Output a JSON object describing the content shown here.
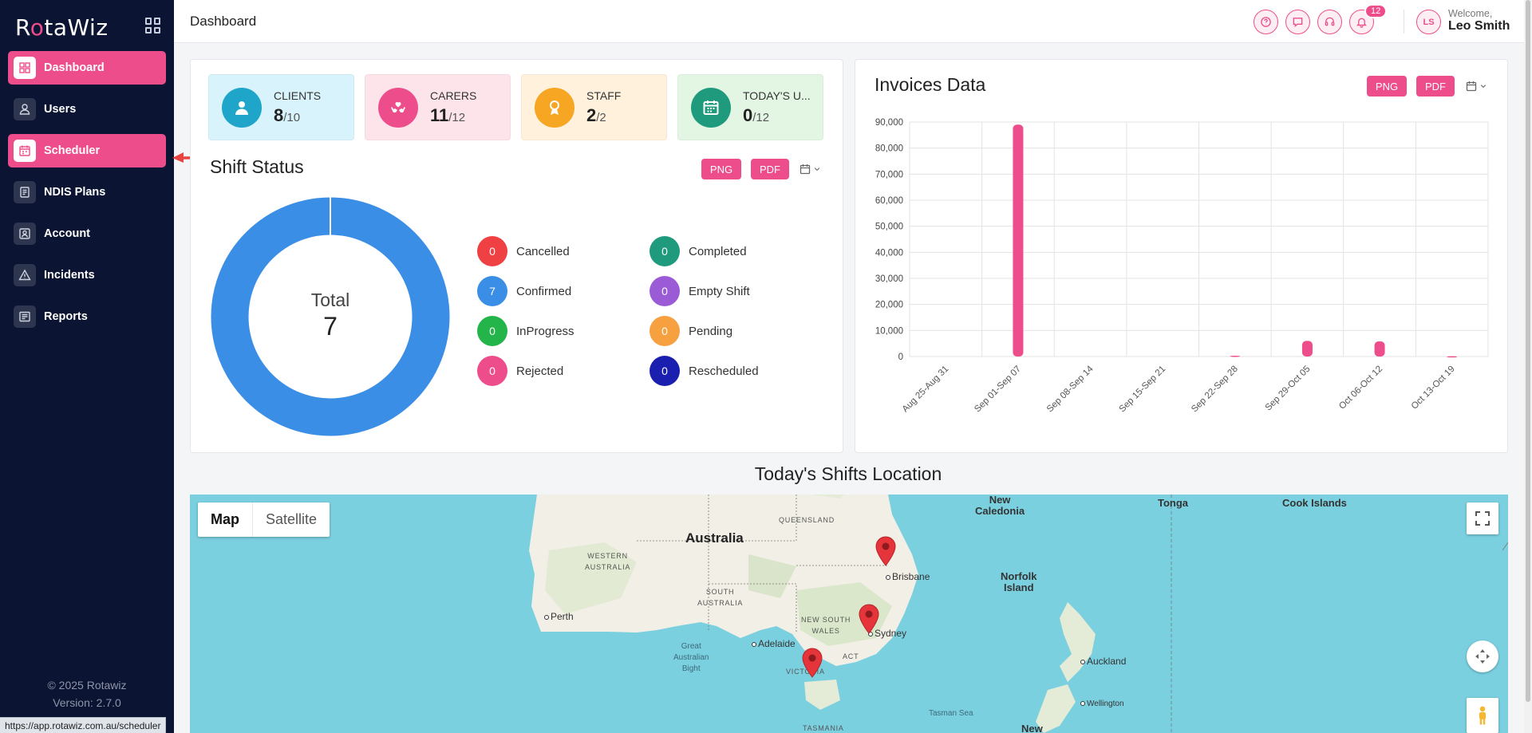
{
  "app": {
    "logo_pre": "R",
    "logo_o": "o",
    "logo_post": "taWiz"
  },
  "sidebar": {
    "items": [
      {
        "label": "Dashboard",
        "icon": "dashboard-icon",
        "active": true
      },
      {
        "label": "Users",
        "icon": "user-icon",
        "active": false
      },
      {
        "label": "Scheduler",
        "icon": "calendar-icon",
        "active": true
      },
      {
        "label": "NDIS Plans",
        "icon": "document-icon",
        "active": false
      },
      {
        "label": "Account",
        "icon": "account-icon",
        "active": false
      },
      {
        "label": "Incidents",
        "icon": "warning-icon",
        "active": false
      },
      {
        "label": "Reports",
        "icon": "report-icon",
        "active": false
      }
    ],
    "copyright": "© 2025 Rotawiz",
    "version": "Version: 2.7.0"
  },
  "status_url": "https://app.rotawiz.com.au/scheduler",
  "header": {
    "title": "Dashboard",
    "notification_count": "12",
    "avatar_initials": "LS",
    "welcome": "Welcome,",
    "username": "Leo Smith"
  },
  "stats": [
    {
      "label": "CLIENTS",
      "value": "8",
      "total": "/10",
      "bg": "#d8f3fb",
      "circle": "#1ea5c9"
    },
    {
      "label": "CARERS",
      "value": "11",
      "total": "/12",
      "bg": "#fde4ea",
      "circle": "#ee4d8b"
    },
    {
      "label": "STAFF",
      "value": "2",
      "total": "/2",
      "bg": "#fff1dc",
      "circle": "#f6a623"
    },
    {
      "label": "TODAY'S U...",
      "value": "0",
      "total": "/12",
      "bg": "#e3f6e4",
      "circle": "#1f9a7c"
    }
  ],
  "shift_status": {
    "title": "Shift Status",
    "png": "PNG",
    "pdf": "PDF",
    "total_label": "Total",
    "total_value": "7",
    "legend": [
      {
        "label": "Cancelled",
        "value": "0",
        "color": "#ef4044"
      },
      {
        "label": "Completed",
        "value": "0",
        "color": "#1f9a7c"
      },
      {
        "label": "Confirmed",
        "value": "7",
        "color": "#3a8ee6"
      },
      {
        "label": "Empty Shift",
        "value": "0",
        "color": "#9c5bd6"
      },
      {
        "label": "InProgress",
        "value": "0",
        "color": "#23b54a"
      },
      {
        "label": "Pending",
        "value": "0",
        "color": "#f6a040"
      },
      {
        "label": "Rejected",
        "value": "0",
        "color": "#ee4d8b"
      },
      {
        "label": "Rescheduled",
        "value": "0",
        "color": "#1a1fb0"
      }
    ]
  },
  "invoices": {
    "title": "Invoices Data",
    "png": "PNG",
    "pdf": "PDF"
  },
  "chart_data": {
    "type": "bar",
    "title": "Invoices Data",
    "categories": [
      "Aug 25-Aug 31",
      "Sep 01-Sep 07",
      "Sep 08-Sep 14",
      "Sep 15-Sep 21",
      "Sep 22-Sep 28",
      "Sep 29-Oct 05",
      "Oct 06-Oct 12",
      "Oct 13-Oct 19"
    ],
    "values": [
      0,
      89000,
      0,
      0,
      300,
      6000,
      5800,
      100
    ],
    "ylim": [
      0,
      90000
    ],
    "yticks": [
      "0",
      "10,000",
      "20,000",
      "30,000",
      "40,000",
      "50,000",
      "60,000",
      "70,000",
      "80,000",
      "90,000"
    ],
    "ytick_values": [
      0,
      10000,
      20000,
      30000,
      40000,
      50000,
      60000,
      70000,
      80000,
      90000
    ],
    "bar_color": "#ee4d8b",
    "grid": true
  },
  "map": {
    "title": "Today's Shifts Location",
    "map_btn": "Map",
    "satellite_btn": "Satellite",
    "labels": {
      "australia": "Australia",
      "new_caledonia": "New\nCaledonia",
      "tonga": "Tonga",
      "cook_islands": "Cook Islands",
      "queensland": "QUEENSLAND",
      "western_australia": "WESTERN\nAUSTRALIA",
      "south_australia": "SOUTH\nAUSTRALIA",
      "new_south_wales": "NEW SOUTH\nWALES",
      "victoria": "VICTORIA",
      "act": "ACT",
      "tasmania": "TASMANIA",
      "norfolk_island": "Norfolk\nIsland",
      "great_australian_bight": "Great\nAustralian\nBight",
      "tasman_sea": "Tasman Sea",
      "brisbane": "Brisbane",
      "sydney": "Sydney",
      "perth": "Perth",
      "adelaide": "Adelaide",
      "auckland": "Auckland",
      "wellington": "Wellington",
      "new": "New"
    }
  }
}
